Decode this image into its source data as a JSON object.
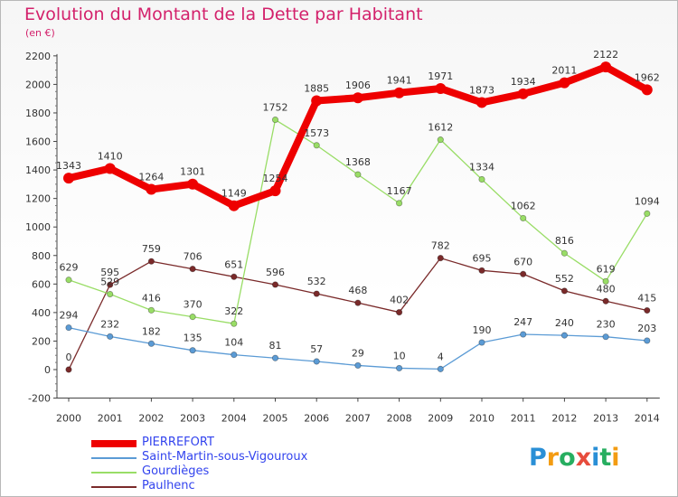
{
  "title": "Evolution du Montant de la Dette par Habitant",
  "unit_label": "(en €)",
  "logo": {
    "text": "Proxiti",
    "letters": [
      "P",
      "r",
      "o",
      "x",
      "i",
      "t",
      "i"
    ],
    "colors": [
      "#2a8fd6",
      "#f39c12",
      "#27ae60",
      "#e74c3c",
      "#2a8fd6",
      "#27ae60",
      "#f39c12"
    ]
  },
  "chart_data": {
    "type": "line",
    "title": "Evolution du Montant de la Dette par Habitant",
    "ylabel": "(en €)",
    "x": [
      "2000",
      "2001",
      "2002",
      "2003",
      "2004",
      "2005",
      "2006",
      "2007",
      "2008",
      "2009",
      "2010",
      "2011",
      "2012",
      "2013",
      "2014"
    ],
    "yticks": [
      "-200",
      "0",
      "200",
      "400",
      "600",
      "800",
      "1000",
      "1200",
      "1400",
      "1600",
      "1800",
      "2000",
      "2200"
    ],
    "ylim": [
      -200,
      2200
    ],
    "grid": false,
    "legend_position": "bottom-left",
    "series": [
      {
        "name": "PIERREFORT",
        "color": "#ee0000",
        "values": [
          1343,
          1410,
          1264,
          1301,
          1149,
          1254,
          1885,
          1906,
          1941,
          1971,
          1873,
          1934,
          2011,
          2122,
          1962
        ],
        "labels": [
          "1343",
          "1410",
          "1264",
          "1301",
          "1149",
          "1254",
          "1885",
          "1906",
          "1941",
          "1971",
          "1873",
          "1934",
          "2011",
          "2122",
          "1962"
        ]
      },
      {
        "name": "Saint-Martin-sous-Vigouroux",
        "color": "#5b9bd5",
        "values": [
          294,
          232,
          182,
          135,
          104,
          81,
          57,
          29,
          10,
          4,
          190,
          247,
          240,
          230,
          203
        ],
        "labels": [
          "294",
          "232",
          "182",
          "135",
          "104",
          "81",
          "57",
          "29",
          "10",
          "4",
          "190",
          "247",
          "240",
          "230",
          "203"
        ]
      },
      {
        "name": "Gourdièges",
        "color": "#99dd66",
        "values": [
          629,
          529,
          416,
          370,
          322,
          1752,
          1573,
          1368,
          1167,
          1612,
          1334,
          1062,
          816,
          619,
          1094
        ],
        "labels": [
          "629",
          "529",
          "416",
          "370",
          "322",
          "1752",
          "1573",
          "1368",
          "1167",
          "1612",
          "1334",
          "1062",
          "816",
          "619",
          "1094"
        ]
      },
      {
        "name": "Paulhenc",
        "color": "#7a2a2a",
        "values": [
          0,
          595,
          759,
          706,
          651,
          596,
          532,
          468,
          402,
          782,
          695,
          670,
          552,
          480,
          415
        ],
        "labels": [
          "0",
          "595",
          "759",
          "706",
          "651",
          "596",
          "532",
          "468",
          "402",
          "782",
          "695",
          "670",
          "552",
          "480",
          "415"
        ]
      }
    ]
  }
}
